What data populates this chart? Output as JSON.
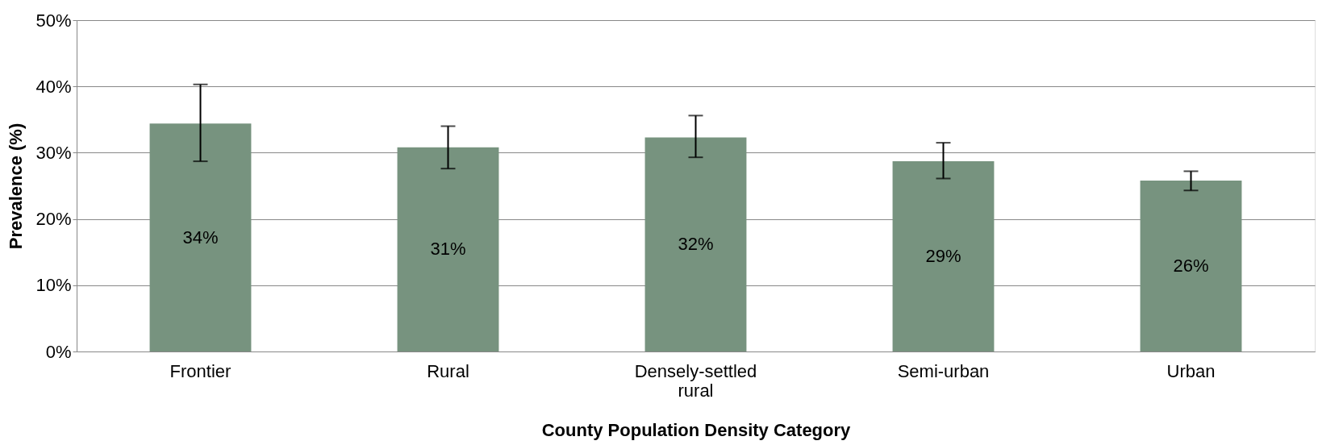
{
  "chart_data": {
    "type": "bar",
    "xlabel": "County Population Density Category",
    "ylabel": "Prevalence (%)",
    "categories": [
      "Frontier",
      "Rural",
      "Densely-settled rural",
      "Semi-urban",
      "Urban"
    ],
    "values": [
      34.4,
      30.8,
      32.3,
      28.7,
      25.8
    ],
    "value_labels": [
      "34%",
      "31%",
      "32%",
      "29%",
      "26%"
    ],
    "errors": [
      [
        28.7,
        40.3
      ],
      [
        27.6,
        34.0
      ],
      [
        29.3,
        35.6
      ],
      [
        26.1,
        31.5
      ],
      [
        24.3,
        27.2
      ]
    ],
    "color": "#77937f",
    "ylim": [
      0,
      50
    ],
    "yticks": [
      {
        "value": 0,
        "label": "0%"
      },
      {
        "value": 10,
        "label": "10%"
      },
      {
        "value": 20,
        "label": "20%"
      },
      {
        "value": 30,
        "label": "30%"
      },
      {
        "value": 40,
        "label": "40%"
      },
      {
        "value": 50,
        "label": "50%"
      }
    ],
    "grid": "y"
  }
}
